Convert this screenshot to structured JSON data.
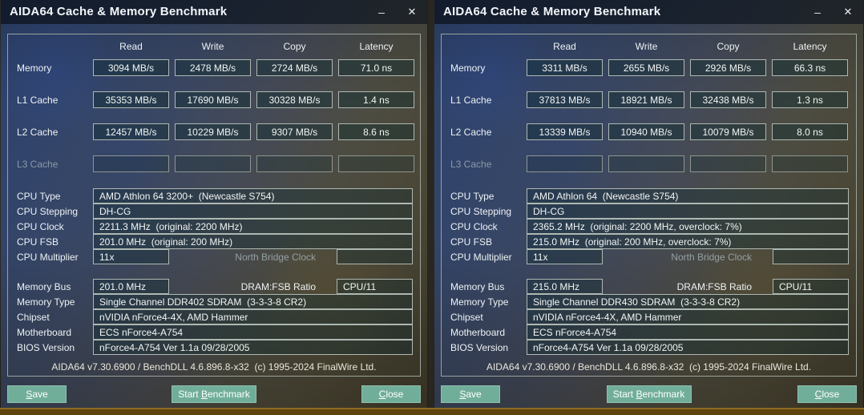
{
  "glyphs": {
    "minimize": "–",
    "close": "✕"
  },
  "bottom_strip_color": "#5f440e",
  "button_color": "#71ae9a",
  "windows": [
    {
      "title": "AIDA64 Cache & Memory Benchmark",
      "table": {
        "columns": [
          "Read",
          "Write",
          "Copy",
          "Latency"
        ],
        "rows": [
          {
            "label": "Memory",
            "values": [
              "3094 MB/s",
              "2478 MB/s",
              "2724 MB/s",
              "71.0 ns"
            ]
          },
          {
            "label": "L1 Cache",
            "values": [
              "35353 MB/s",
              "17690 MB/s",
              "30328 MB/s",
              "1.4 ns"
            ]
          },
          {
            "label": "L2 Cache",
            "values": [
              "12457 MB/s",
              "10229 MB/s",
              "9307 MB/s",
              "8.6 ns"
            ]
          },
          {
            "label": "L3 Cache",
            "values": [
              "",
              "",
              "",
              ""
            ]
          }
        ]
      },
      "cpu_fields": [
        {
          "label": "CPU Type",
          "value": "AMD Athlon 64 3200+  (Newcastle S754)"
        },
        {
          "label": "CPU Stepping",
          "value": "DH-CG"
        },
        {
          "label": "CPU Clock",
          "value": "2211.3 MHz  (original: 2200 MHz)"
        },
        {
          "label": "CPU FSB",
          "value": "201.0 MHz  (original: 200 MHz)"
        }
      ],
      "multiplier_row": {
        "label": "CPU Multiplier",
        "value": "11x",
        "north_bridge_label": "North Bridge Clock",
        "north_bridge_value": ""
      },
      "memory_bus_row": {
        "label": "Memory Bus",
        "value": "201.0 MHz",
        "ratio_label": "DRAM:FSB Ratio",
        "ratio_value": "CPU/11"
      },
      "system_fields": [
        {
          "label": "Memory Type",
          "value": "Single Channel DDR402 SDRAM  (3-3-3-8 CR2)"
        },
        {
          "label": "Chipset",
          "value": "nVIDIA nForce4-4X, AMD Hammer"
        },
        {
          "label": "Motherboard",
          "value": "ECS nForce4-A754"
        },
        {
          "label": "BIOS Version",
          "value": "nForce4-A754 Ver 1.1a 09/28/2005"
        }
      ],
      "footer": "AIDA64 v7.30.6900 / BenchDLL 4.6.896.8-x32  (c) 1995-2024 FinalWire Ltd.",
      "buttons": {
        "save": "Save",
        "start_benchmark": "Start Benchmark",
        "close": "Close"
      }
    },
    {
      "title": "AIDA64 Cache & Memory Benchmark",
      "table": {
        "columns": [
          "Read",
          "Write",
          "Copy",
          "Latency"
        ],
        "rows": [
          {
            "label": "Memory",
            "values": [
              "3311 MB/s",
              "2655 MB/s",
              "2926 MB/s",
              "66.3 ns"
            ]
          },
          {
            "label": "L1 Cache",
            "values": [
              "37813 MB/s",
              "18921 MB/s",
              "32438 MB/s",
              "1.3 ns"
            ]
          },
          {
            "label": "L2 Cache",
            "values": [
              "13339 MB/s",
              "10940 MB/s",
              "10079 MB/s",
              "8.0 ns"
            ]
          },
          {
            "label": "L3 Cache",
            "values": [
              "",
              "",
              "",
              ""
            ]
          }
        ]
      },
      "cpu_fields": [
        {
          "label": "CPU Type",
          "value": "AMD Athlon 64  (Newcastle S754)"
        },
        {
          "label": "CPU Stepping",
          "value": "DH-CG"
        },
        {
          "label": "CPU Clock",
          "value": "2365.2 MHz  (original: 2200 MHz, overclock: 7%)"
        },
        {
          "label": "CPU FSB",
          "value": "215.0 MHz  (original: 200 MHz, overclock: 7%)"
        }
      ],
      "multiplier_row": {
        "label": "CPU Multiplier",
        "value": "11x",
        "north_bridge_label": "North Bridge Clock",
        "north_bridge_value": ""
      },
      "memory_bus_row": {
        "label": "Memory Bus",
        "value": "215.0 MHz",
        "ratio_label": "DRAM:FSB Ratio",
        "ratio_value": "CPU/11"
      },
      "system_fields": [
        {
          "label": "Memory Type",
          "value": "Single Channel DDR430 SDRAM  (3-3-3-8 CR2)"
        },
        {
          "label": "Chipset",
          "value": "nVIDIA nForce4-4X, AMD Hammer"
        },
        {
          "label": "Motherboard",
          "value": "ECS nForce4-A754"
        },
        {
          "label": "BIOS Version",
          "value": "nForce4-A754 Ver 1.1a 09/28/2005"
        }
      ],
      "footer": "AIDA64 v7.30.6900 / BenchDLL 4.6.896.8-x32  (c) 1995-2024 FinalWire Ltd.",
      "buttons": {
        "save": "Save",
        "start_benchmark": "Start Benchmark",
        "close": "Close"
      }
    }
  ]
}
